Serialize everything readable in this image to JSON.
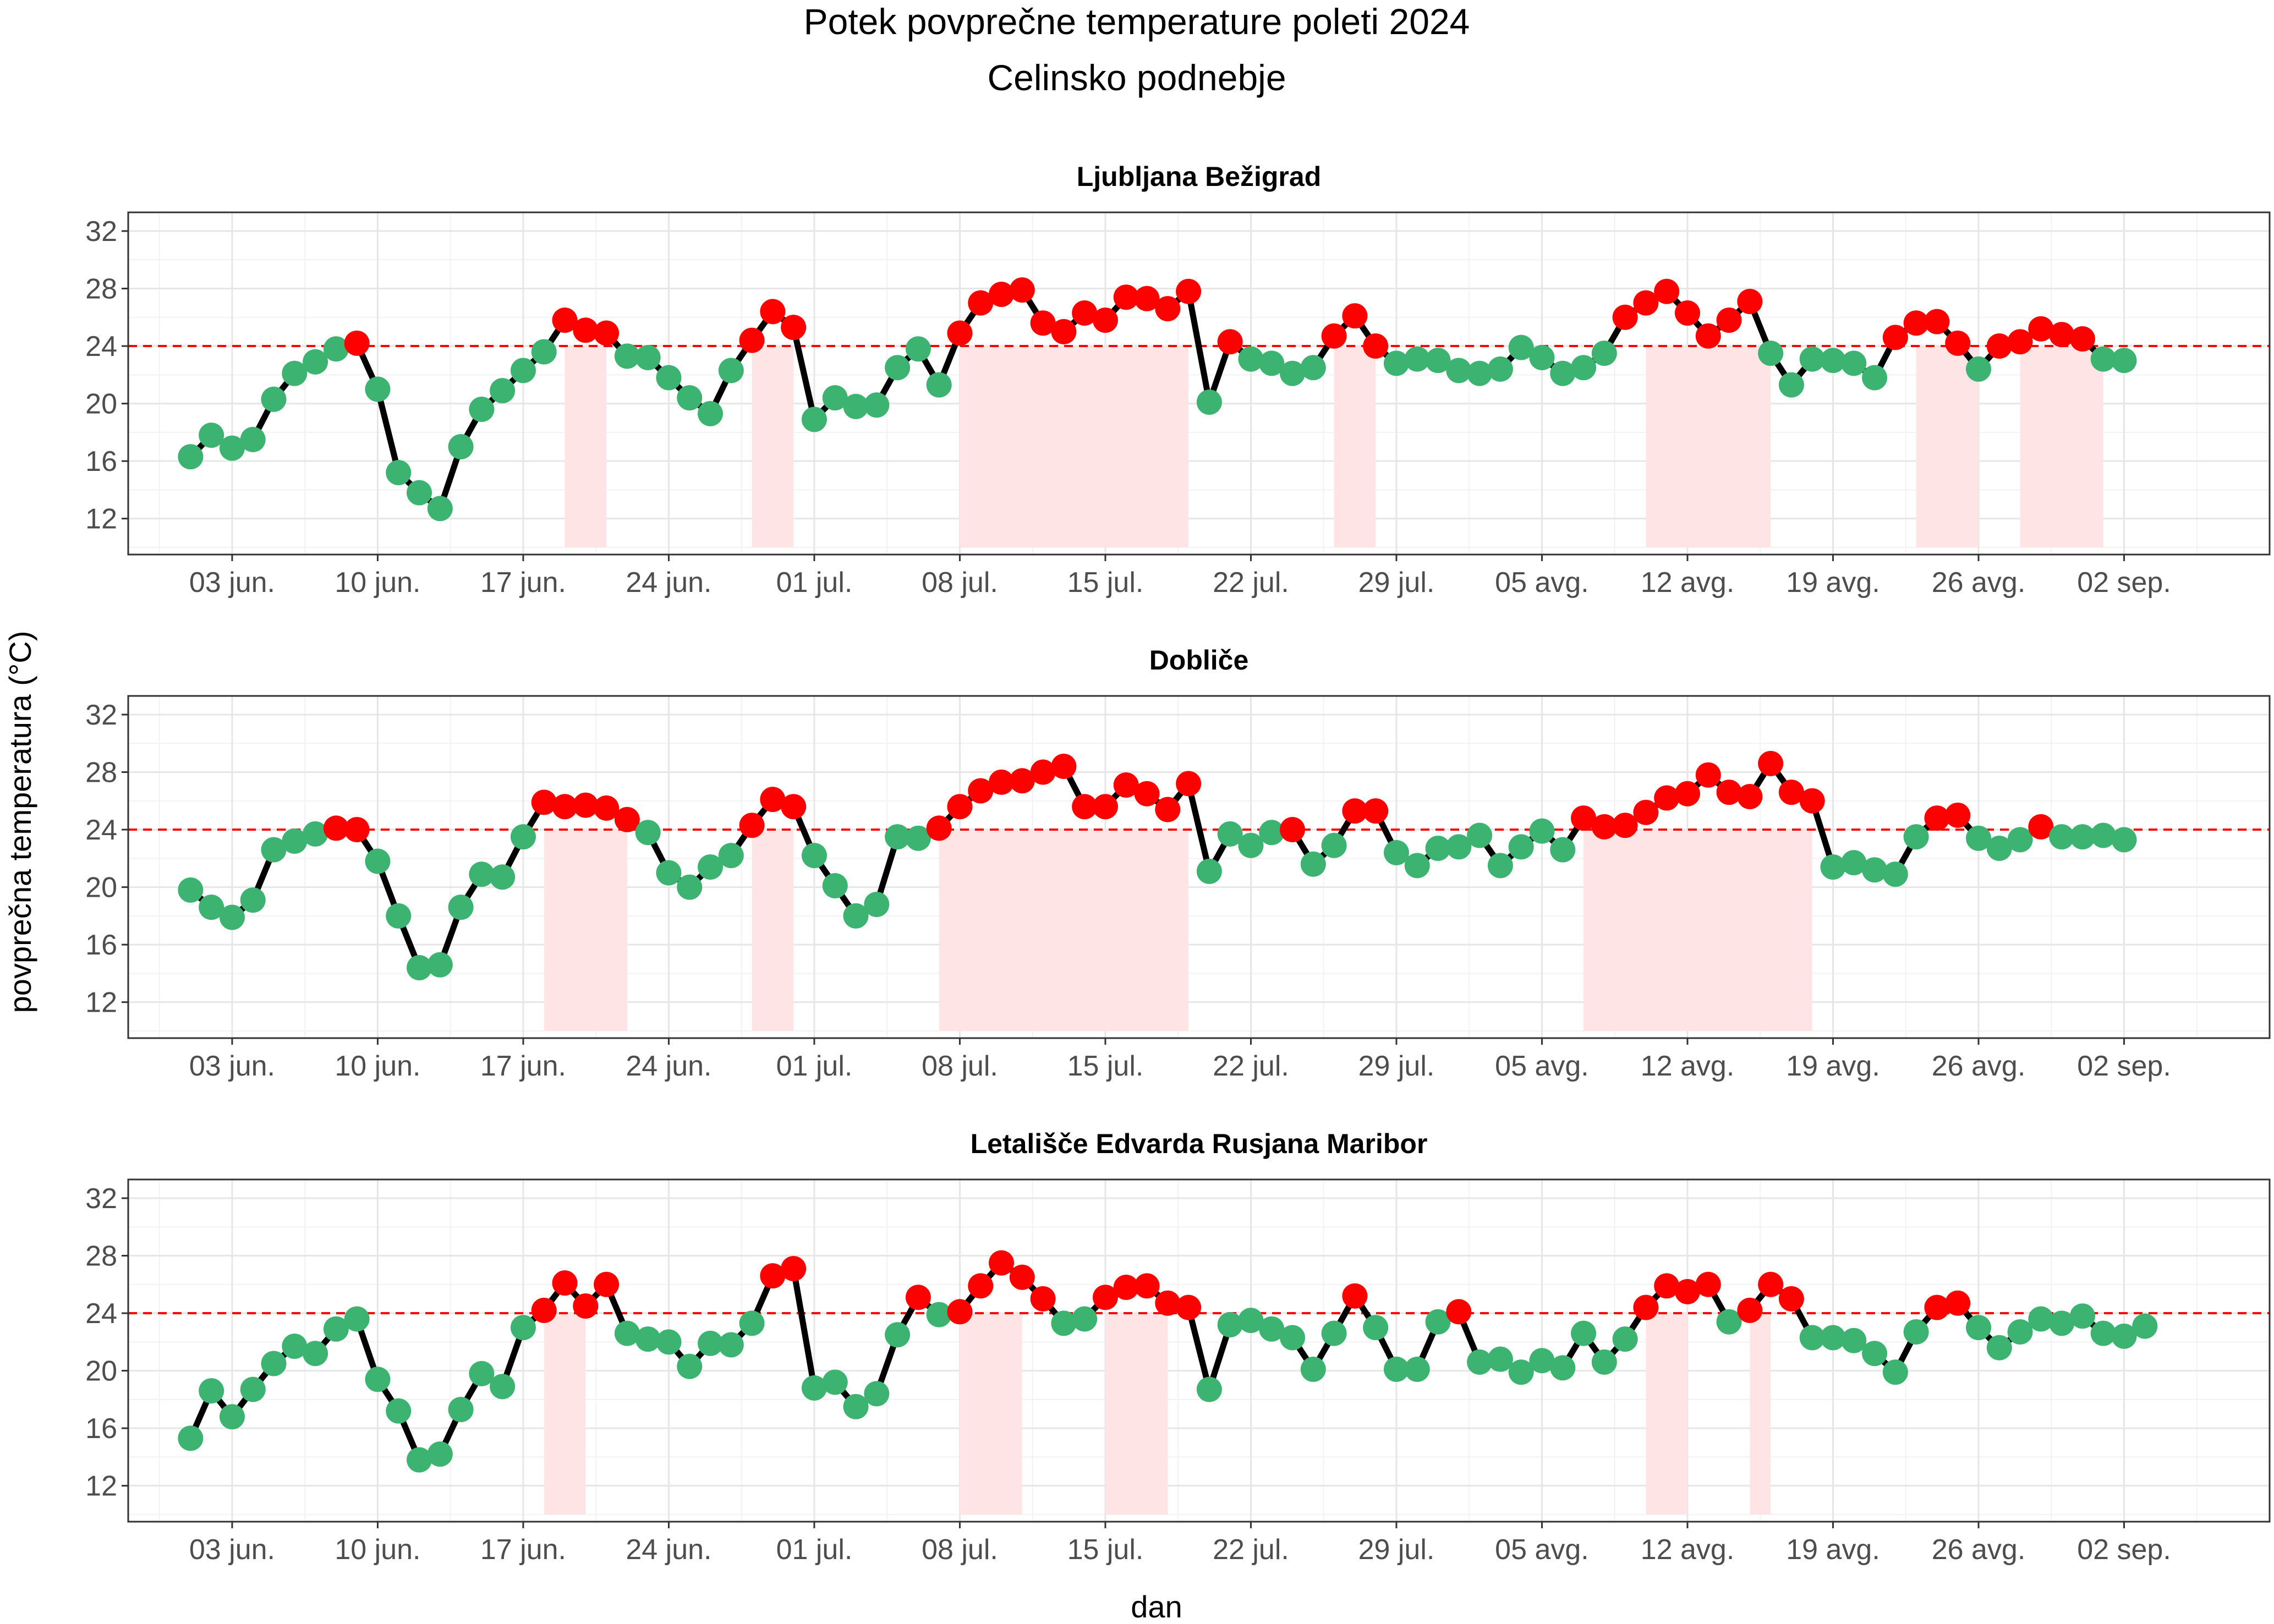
{
  "title": "Potek povprečne temperature poleti 2024",
  "subtitle": "Celinsko podnebje",
  "xlabel": "dan",
  "ylabel": "povprečna temperatura (°C)",
  "colors": {
    "above_threshold": "#ff0000",
    "below_threshold": "#3cb371",
    "line": "#000000",
    "threshold_line": "#ff0000",
    "heatwave_shade": "#ffe4e6"
  },
  "chart_data": {
    "type": "line",
    "x_start_date": "2024-06-01",
    "xlim": [
      "2024-05-29",
      "2024-09-09"
    ],
    "ylim": [
      9.5,
      33.3
    ],
    "yticks": [
      12,
      16,
      20,
      24,
      28,
      32
    ],
    "xticks": [
      {
        "date": "2024-06-03",
        "label": "03 jun."
      },
      {
        "date": "2024-06-10",
        "label": "10 jun."
      },
      {
        "date": "2024-06-17",
        "label": "17 jun."
      },
      {
        "date": "2024-06-24",
        "label": "24 jun."
      },
      {
        "date": "2024-07-01",
        "label": "01 jul."
      },
      {
        "date": "2024-07-08",
        "label": "08 jul."
      },
      {
        "date": "2024-07-15",
        "label": "15 jul."
      },
      {
        "date": "2024-07-22",
        "label": "22 jul."
      },
      {
        "date": "2024-07-29",
        "label": "29 jul."
      },
      {
        "date": "2024-08-05",
        "label": "05 avg."
      },
      {
        "date": "2024-08-12",
        "label": "12 avg."
      },
      {
        "date": "2024-08-19",
        "label": "19 avg."
      },
      {
        "date": "2024-08-26",
        "label": "26 avg."
      },
      {
        "date": "2024-09-02",
        "label": "02 sep."
      }
    ],
    "threshold": 24,
    "grid": true,
    "panels": [
      {
        "name": "Ljubljana Bežigrad",
        "values": [
          16.3,
          17.8,
          16.9,
          17.5,
          20.3,
          22.1,
          22.9,
          23.8,
          24.2,
          21.0,
          15.2,
          13.8,
          12.7,
          17.0,
          19.6,
          20.9,
          22.3,
          23.6,
          25.8,
          25.1,
          24.9,
          23.3,
          23.2,
          21.8,
          20.4,
          19.3,
          22.3,
          24.4,
          26.4,
          25.3,
          18.9,
          20.4,
          19.8,
          19.9,
          22.5,
          23.8,
          21.3,
          24.9,
          27.0,
          27.6,
          27.9,
          25.6,
          25.0,
          26.3,
          25.8,
          27.4,
          27.3,
          26.6,
          27.8,
          20.1,
          24.3,
          23.1,
          22.8,
          22.1,
          22.5,
          24.7,
          26.1,
          24.0,
          22.8,
          23.1,
          23.0,
          22.3,
          22.1,
          22.4,
          23.9,
          23.2,
          22.1,
          22.5,
          23.5,
          26.0,
          27.0,
          27.8,
          26.3,
          24.7,
          25.8,
          27.1,
          23.5,
          21.3,
          23.1,
          23.0,
          22.8,
          21.8,
          24.6,
          25.6,
          25.7,
          24.2,
          22.4,
          24.0,
          24.3,
          25.2,
          24.8,
          24.5,
          23.1,
          23.0
        ],
        "shaded_periods": [
          [
            "2024-06-19",
            "2024-06-21"
          ],
          [
            "2024-06-28",
            "2024-06-30"
          ],
          [
            "2024-07-08",
            "2024-07-19"
          ],
          [
            "2024-07-26",
            "2024-07-28"
          ],
          [
            "2024-08-10",
            "2024-08-16"
          ],
          [
            "2024-08-23",
            "2024-08-26"
          ],
          [
            "2024-08-28",
            "2024-09-01"
          ]
        ]
      },
      {
        "name": "Dobliče",
        "values": [
          19.8,
          18.6,
          17.9,
          19.1,
          22.6,
          23.2,
          23.7,
          24.1,
          24.0,
          21.8,
          18.0,
          14.4,
          14.6,
          18.6,
          20.9,
          20.7,
          23.5,
          25.9,
          25.6,
          25.7,
          25.5,
          24.7,
          23.8,
          21.0,
          20.0,
          21.4,
          22.2,
          24.3,
          26.1,
          25.6,
          22.2,
          20.1,
          18.0,
          18.8,
          23.5,
          23.4,
          24.1,
          25.6,
          26.7,
          27.3,
          27.4,
          28.0,
          28.4,
          25.6,
          25.6,
          27.1,
          26.5,
          25.4,
          27.2,
          21.1,
          23.7,
          22.9,
          23.8,
          24.0,
          21.6,
          22.9,
          25.3,
          25.3,
          22.4,
          21.5,
          22.7,
          22.8,
          23.6,
          21.5,
          22.8,
          23.9,
          22.6,
          24.8,
          24.2,
          24.3,
          25.2,
          26.2,
          26.5,
          27.8,
          26.6,
          26.3,
          28.6,
          26.6,
          26.0,
          21.4,
          21.7,
          21.2,
          20.9,
          23.5,
          24.8,
          25.0,
          23.4,
          22.7,
          23.3,
          24.2,
          23.5,
          23.5,
          23.6,
          23.3
        ],
        "shaded_periods": [
          [
            "2024-06-18",
            "2024-06-22"
          ],
          [
            "2024-06-28",
            "2024-06-30"
          ],
          [
            "2024-07-07",
            "2024-07-19"
          ],
          [
            "2024-08-07",
            "2024-08-18"
          ]
        ]
      },
      {
        "name": "Letališče Edvarda Rusjana Maribor",
        "values": [
          15.3,
          18.6,
          16.8,
          18.7,
          20.5,
          21.7,
          21.2,
          22.9,
          23.6,
          19.4,
          17.2,
          13.8,
          14.2,
          17.3,
          19.8,
          18.9,
          23.0,
          24.2,
          26.1,
          24.5,
          26.0,
          22.6,
          22.2,
          22.0,
          20.3,
          21.9,
          21.8,
          23.3,
          26.6,
          27.1,
          18.8,
          19.2,
          17.5,
          18.4,
          22.5,
          25.1,
          23.9,
          24.1,
          25.9,
          27.5,
          26.5,
          25.0,
          23.3,
          23.6,
          25.1,
          25.8,
          25.9,
          24.7,
          24.4,
          18.7,
          23.2,
          23.5,
          22.9,
          22.3,
          20.1,
          22.6,
          25.2,
          23.0,
          20.1,
          20.1,
          23.4,
          24.1,
          20.6,
          20.8,
          19.9,
          20.7,
          20.2,
          22.6,
          20.6,
          22.2,
          24.4,
          25.9,
          25.5,
          26.0,
          23.4,
          24.2,
          26.0,
          25.0,
          22.3,
          22.3,
          22.1,
          21.2,
          19.9,
          22.7,
          24.4,
          24.7,
          23.0,
          21.6,
          22.7,
          23.6,
          23.3,
          23.8,
          22.6,
          22.4,
          23.1
        ],
        "shaded_periods": [
          [
            "2024-06-18",
            "2024-06-20"
          ],
          [
            "2024-07-08",
            "2024-07-11"
          ],
          [
            "2024-07-15",
            "2024-07-18"
          ],
          [
            "2024-08-10",
            "2024-08-12"
          ],
          [
            "2024-08-15",
            "2024-08-16"
          ]
        ]
      }
    ]
  }
}
